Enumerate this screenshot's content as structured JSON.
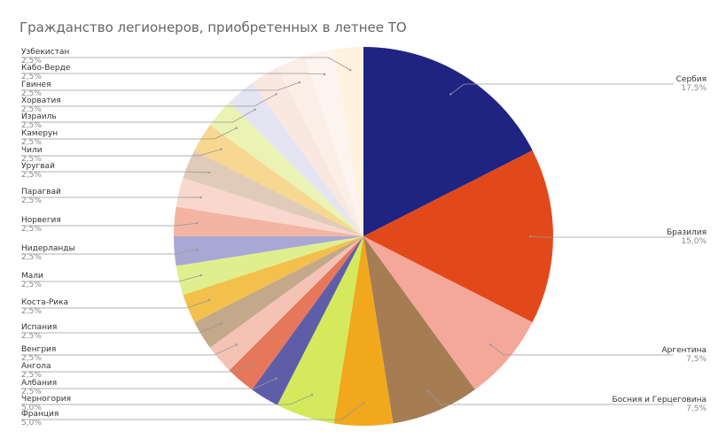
{
  "chart_data": {
    "type": "pie",
    "title": "Гражданство легионеров, приобретенных в летнее ТО",
    "categories": [
      "Сербия",
      "Бразилия",
      "Аргентина",
      "Босния и Герцеговина",
      "Франция",
      "Черногория",
      "Албания",
      "Ангола",
      "Венгрия",
      "Испания",
      "Коста-Рика",
      "Мали",
      "Нидерланды",
      "Норвегия",
      "Парагвай",
      "Уругвай",
      "Чили",
      "Камерун",
      "Израиль",
      "Хорватия",
      "Гвинея",
      "Кабо-Верде",
      "Узбекистан"
    ],
    "values": [
      17.5,
      15.0,
      7.5,
      7.5,
      5.0,
      5.0,
      2.5,
      2.5,
      2.5,
      2.5,
      2.5,
      2.5,
      2.5,
      2.5,
      2.5,
      2.5,
      2.5,
      2.5,
      2.5,
      2.5,
      2.5,
      2.5,
      2.5
    ],
    "value_labels": [
      "17,5%",
      "15,0%",
      "7,5%",
      "7,5%",
      "5,0%",
      "5,0%",
      "2,5%",
      "2,5%",
      "2,5%",
      "2,5%",
      "2,5%",
      "2,5%",
      "2,5%",
      "2,5%",
      "2,5%",
      "2,5%",
      "2,5%",
      "2,5%",
      "2,5%",
      "2,5%",
      "2,5%",
      "2,5%",
      "2,5%"
    ],
    "colors": [
      "#1f2382",
      "#e2491a",
      "#f4a89a",
      "#a67c52",
      "#f2a81d",
      "#d4ea5c",
      "#5e5ea8",
      "#e6775a",
      "#f4c3b6",
      "#c4a88a",
      "#f4c04c",
      "#e0ef8e",
      "#a8a8d4",
      "#f4b4a4",
      "#f8d8cc",
      "#e0cbb8",
      "#f8d890",
      "#eaf2b4",
      "#e4e4f2",
      "#f8e8e0",
      "#fbeee6",
      "#fdf4f0",
      "#fff3e0"
    ]
  }
}
